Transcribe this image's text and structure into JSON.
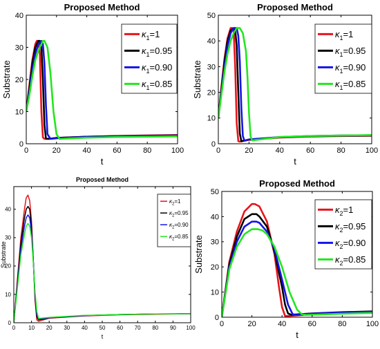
{
  "chart_data": [
    {
      "type": "line",
      "title": "Proposed Method",
      "xlabel": "t",
      "ylabel": "Substrate",
      "xlim": [
        0,
        100
      ],
      "ylim": [
        0,
        40
      ],
      "xticks": [
        0,
        20,
        40,
        60,
        80,
        100
      ],
      "yticks": [
        0,
        10,
        20,
        30,
        40
      ],
      "legend_position": "top-right",
      "series": [
        {
          "name": "κ1=1",
          "label_main": "κ",
          "label_sub": "1",
          "label_rest": "=1",
          "color": "#e8131b",
          "x": [
            0,
            2,
            4,
            6,
            7,
            8,
            9,
            10,
            11,
            12,
            14,
            20,
            40,
            60,
            80,
            100
          ],
          "y": [
            10,
            18,
            26,
            31,
            32,
            32,
            28,
            10,
            2,
            1.5,
            1.5,
            1.8,
            2.2,
            2.4,
            2.6,
            2.7
          ]
        },
        {
          "name": "κ1=0.95",
          "label_main": "κ",
          "label_sub": "1",
          "label_rest": "=0.95",
          "color": "#000000",
          "x": [
            0,
            2,
            4,
            6,
            8,
            9,
            10,
            11,
            12,
            13,
            15,
            20,
            40,
            60,
            80,
            100
          ],
          "y": [
            10,
            17,
            25,
            30,
            32,
            32,
            30,
            20,
            6,
            1.6,
            1.5,
            1.8,
            2.2,
            2.4,
            2.5,
            2.6
          ]
        },
        {
          "name": "κ1=0.90",
          "label_main": "κ",
          "label_sub": "1",
          "label_rest": "=0.90",
          "color": "#1414e6",
          "x": [
            0,
            2,
            4,
            6,
            8,
            10,
            11,
            12,
            13,
            14,
            16,
            20,
            40,
            60,
            80,
            100
          ],
          "y": [
            10,
            16,
            23,
            28,
            31,
            32,
            31,
            25,
            12,
            3,
            1.5,
            1.7,
            2.1,
            2.3,
            2.4,
            2.5
          ]
        },
        {
          "name": "κ1=0.85",
          "label_main": "κ",
          "label_sub": "1",
          "label_rest": "=0.85",
          "color": "#22e61e",
          "x": [
            0,
            2,
            4,
            6,
            8,
            10,
            11,
            12,
            14,
            16,
            18,
            20,
            22,
            40,
            60,
            80,
            100
          ],
          "y": [
            10,
            15,
            21,
            26,
            29,
            31,
            32,
            32,
            30,
            22,
            10,
            3,
            1.5,
            1.9,
            2.1,
            2.2,
            2.3
          ]
        }
      ]
    },
    {
      "type": "line",
      "title": "Proposed Method",
      "xlabel": "t",
      "ylabel": "Substrate",
      "xlim": [
        0,
        100
      ],
      "ylim": [
        0,
        50
      ],
      "xticks": [
        0,
        20,
        40,
        60,
        80,
        100
      ],
      "yticks": [
        0,
        10,
        20,
        30,
        40,
        50
      ],
      "legend_position": "top-right",
      "series": [
        {
          "name": "κ1=1",
          "label_main": "κ",
          "label_sub": "1",
          "label_rest": "=1",
          "color": "#e8131b",
          "x": [
            0,
            2,
            4,
            6,
            8,
            9,
            10,
            11,
            12,
            13,
            14,
            20,
            40,
            60,
            80,
            100
          ],
          "y": [
            10,
            22,
            33,
            41,
            45,
            45,
            44,
            30,
            8,
            1,
            0.8,
            1.5,
            2.4,
            2.8,
            3.0,
            3.1
          ]
        },
        {
          "name": "κ1=0.95",
          "label_main": "κ",
          "label_sub": "1",
          "label_rest": "=0.95",
          "color": "#000000",
          "x": [
            0,
            2,
            4,
            6,
            8,
            10,
            11,
            12,
            13,
            14,
            15,
            20,
            40,
            60,
            80,
            100
          ],
          "y": [
            10,
            21,
            32,
            40,
            44,
            45,
            44,
            38,
            20,
            4,
            1,
            1.6,
            2.5,
            2.9,
            3.1,
            3.2
          ]
        },
        {
          "name": "κ1=0.90",
          "label_main": "κ",
          "label_sub": "1",
          "label_rest": "=0.90",
          "color": "#1414e6",
          "x": [
            0,
            2,
            4,
            6,
            8,
            10,
            12,
            13,
            14,
            15,
            16,
            17,
            20,
            40,
            60,
            80,
            100
          ],
          "y": [
            10,
            20,
            30,
            38,
            43,
            45,
            45,
            42,
            32,
            14,
            3,
            1.2,
            1.7,
            2.6,
            3.0,
            3.2,
            3.3
          ]
        },
        {
          "name": "κ1=0.85",
          "label_main": "κ",
          "label_sub": "1",
          "label_rest": "=0.85",
          "color": "#22e61e",
          "x": [
            0,
            2,
            4,
            6,
            8,
            10,
            12,
            14,
            16,
            18,
            19,
            20,
            21,
            22,
            40,
            60,
            80,
            100
          ],
          "y": [
            10,
            19,
            28,
            35,
            40,
            43,
            45,
            45,
            43,
            36,
            26,
            12,
            3,
            1.3,
            2.6,
            3.0,
            3.2,
            3.4
          ]
        }
      ]
    },
    {
      "type": "line",
      "title": "Proposed Method",
      "xlabel": "t",
      "ylabel": "Substrate",
      "xlim": [
        0,
        100
      ],
      "ylim": [
        0,
        48
      ],
      "xticks": [
        0,
        10,
        20,
        30,
        40,
        50,
        60,
        70,
        80,
        90,
        100
      ],
      "yticks": [
        0,
        10,
        20,
        30,
        40
      ],
      "legend_position": "top-right",
      "series": [
        {
          "name": "κ2=1",
          "label_main": "κ",
          "label_sub": "2",
          "label_rest": "=1",
          "color": "#e8131b",
          "x": [
            0,
            2,
            4,
            6,
            7,
            8,
            9,
            10,
            11,
            12,
            13,
            14,
            20,
            40,
            60,
            80,
            100
          ],
          "y": [
            0,
            15,
            30,
            40,
            44,
            45,
            43,
            36,
            22,
            8,
            1,
            0.5,
            1.6,
            2.4,
            2.8,
            3.0,
            3.2
          ]
        },
        {
          "name": "κ2=0.95",
          "label_main": "κ",
          "label_sub": "2",
          "label_rest": "=0.95",
          "color": "#000000",
          "x": [
            0,
            2,
            4,
            6,
            7,
            8,
            9,
            10,
            11,
            12,
            13,
            14,
            20,
            40,
            60,
            80,
            100
          ],
          "y": [
            0,
            14,
            28,
            37,
            40,
            41,
            40,
            34,
            22,
            9,
            2,
            1,
            1.7,
            2.5,
            2.9,
            3.1,
            3.2
          ]
        },
        {
          "name": "κ2=0.90",
          "label_main": "κ",
          "label_sub": "2",
          "label_rest": "=0.90",
          "color": "#1414e6",
          "x": [
            0,
            2,
            4,
            6,
            7,
            8,
            9,
            10,
            11,
            12,
            13,
            14,
            20,
            40,
            60,
            80,
            100
          ],
          "y": [
            0,
            13,
            26,
            34,
            37,
            38,
            37,
            32,
            22,
            10,
            3,
            1.2,
            1.8,
            2.5,
            2.9,
            3.1,
            3.2
          ]
        },
        {
          "name": "κ2=0.85",
          "label_main": "κ",
          "label_sub": "2",
          "label_rest": "=0.85",
          "color": "#22e61e",
          "x": [
            0,
            2,
            4,
            6,
            7,
            8,
            9,
            10,
            11,
            12,
            13,
            14,
            20,
            40,
            60,
            80,
            100
          ],
          "y": [
            0,
            12,
            24,
            31,
            34,
            35,
            34,
            30,
            21,
            11,
            4,
            1.5,
            1.9,
            2.6,
            2.9,
            3.1,
            3.2
          ]
        }
      ]
    },
    {
      "type": "line",
      "title": "Proposed Method",
      "xlabel": "t",
      "ylabel": "Substrate",
      "xlim": [
        0,
        100
      ],
      "ylim": [
        0,
        50
      ],
      "xticks": [
        0,
        20,
        40,
        60,
        80,
        100
      ],
      "yticks": [
        0,
        10,
        20,
        30,
        40,
        50
      ],
      "legend_position": "top-right",
      "series": [
        {
          "name": "κ2=1",
          "label_main": "κ",
          "label_sub": "2",
          "label_rest": "=1",
          "color": "#e8131b",
          "x": [
            0,
            5,
            10,
            15,
            20,
            22,
            25,
            30,
            35,
            38,
            40,
            42,
            45,
            60,
            80,
            100
          ],
          "y": [
            0,
            22,
            34,
            42,
            45,
            45,
            44,
            38,
            25,
            12,
            4,
            0.5,
            0.5,
            1.2,
            1.8,
            2.2
          ]
        },
        {
          "name": "κ2=0.95",
          "label_main": "κ",
          "label_sub": "2",
          "label_rest": "=0.95",
          "color": "#000000",
          "x": [
            0,
            5,
            10,
            15,
            20,
            23,
            25,
            30,
            35,
            40,
            42,
            44,
            46,
            60,
            80,
            100
          ],
          "y": [
            0,
            21,
            32,
            39,
            41,
            41,
            40,
            36,
            26,
            12,
            5,
            1.5,
            1.0,
            1.5,
            2.0,
            2.3
          ]
        },
        {
          "name": "κ2=0.90",
          "label_main": "κ",
          "label_sub": "2",
          "label_rest": "=0.90",
          "color": "#1414e6",
          "x": [
            0,
            5,
            10,
            15,
            20,
            23,
            25,
            30,
            35,
            40,
            44,
            47,
            50,
            60,
            80,
            100
          ],
          "y": [
            0,
            20,
            30,
            36,
            38,
            38,
            37.5,
            34,
            27,
            15,
            5,
            1.2,
            0.9,
            1.4,
            1.9,
            2.2
          ]
        },
        {
          "name": "κ2=0.85",
          "label_main": "κ",
          "label_sub": "2",
          "label_rest": "=0.85",
          "color": "#22e61e",
          "x": [
            0,
            5,
            10,
            15,
            20,
            24,
            27,
            30,
            35,
            40,
            45,
            50,
            53,
            56,
            60,
            80,
            100
          ],
          "y": [
            0,
            19,
            28,
            33,
            35,
            35,
            34.5,
            33,
            28,
            20,
            10,
            3,
            1.2,
            0.9,
            1.0,
            1.4,
            1.7
          ]
        }
      ]
    }
  ]
}
